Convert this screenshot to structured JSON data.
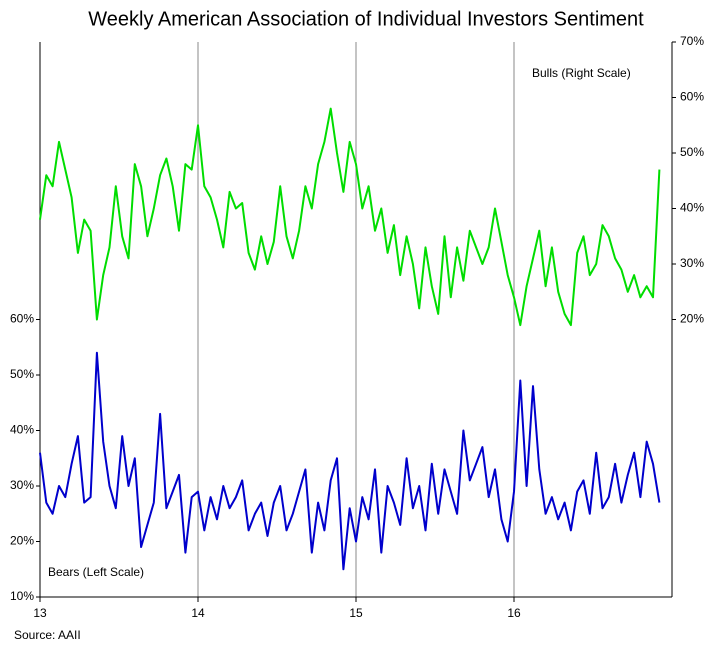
{
  "chart_data": {
    "type": "line",
    "title": "Weekly American Association of Individual  Investors Sentiment",
    "annotations": [
      "Bulls (Right Scale)",
      "Bears (Left Scale)"
    ],
    "source": "Source:  AAII",
    "x": [
      13,
      13.04,
      13.08,
      13.12,
      13.16,
      13.2,
      13.24,
      13.28,
      13.32,
      13.36,
      13.4,
      13.44,
      13.48,
      13.52,
      13.56,
      13.6,
      13.64,
      13.68,
      13.72,
      13.76,
      13.8,
      13.84,
      13.88,
      13.92,
      13.96,
      14,
      14.04,
      14.08,
      14.12,
      14.16,
      14.2,
      14.24,
      14.28,
      14.32,
      14.36,
      14.4,
      14.44,
      14.48,
      14.52,
      14.56,
      14.6,
      14.64,
      14.68,
      14.72,
      14.76,
      14.8,
      14.84,
      14.88,
      14.92,
      14.96,
      15,
      15.04,
      15.08,
      15.12,
      15.16,
      15.2,
      15.24,
      15.28,
      15.32,
      15.36,
      15.4,
      15.44,
      15.48,
      15.52,
      15.56,
      15.6,
      15.64,
      15.68,
      15.72,
      15.76,
      15.8,
      15.84,
      15.88,
      15.92,
      15.96,
      16,
      16.04,
      16.08,
      16.12,
      16.16,
      16.2,
      16.24,
      16.28,
      16.32,
      16.36,
      16.4,
      16.44,
      16.48,
      16.52,
      16.56,
      16.6,
      16.64,
      16.68,
      16.72,
      16.76,
      16.8,
      16.84,
      16.88,
      16.92
    ],
    "series": [
      {
        "name": "Bulls",
        "color": "#00dd00",
        "axis": "y2",
        "values": [
          38,
          46,
          44,
          52,
          47,
          42,
          32,
          38,
          36,
          20,
          28,
          33,
          44,
          35,
          31,
          48,
          44,
          35,
          40,
          46,
          49,
          44,
          36,
          48,
          47,
          55,
          44,
          42,
          38,
          33,
          43,
          40,
          41,
          32,
          29,
          35,
          30,
          34,
          44,
          35,
          31,
          36,
          44,
          40,
          48,
          52,
          58,
          50,
          43,
          52,
          48,
          40,
          44,
          36,
          40,
          32,
          37,
          28,
          35,
          30,
          22,
          33,
          26,
          21,
          35,
          24,
          33,
          27,
          36,
          33,
          30,
          33,
          40,
          34,
          28,
          24,
          19,
          26,
          31,
          36,
          26,
          33,
          25,
          21,
          19,
          32,
          35,
          28,
          30,
          37,
          35,
          31,
          29,
          25,
          28,
          24,
          26,
          24,
          47
        ]
      },
      {
        "name": "Bears",
        "color": "#0000cc",
        "values": [
          36,
          27,
          25,
          30,
          28,
          34,
          39,
          27,
          28,
          54,
          38,
          30,
          26,
          39,
          30,
          35,
          19,
          23,
          27,
          43,
          26,
          29,
          32,
          18,
          28,
          29,
          22,
          28,
          24,
          30,
          26,
          28,
          31,
          22,
          25,
          27,
          21,
          27,
          30,
          22,
          25,
          29,
          33,
          18,
          27,
          22,
          31,
          35,
          15,
          26,
          20,
          28,
          24,
          33,
          18,
          30,
          27,
          23,
          35,
          26,
          30,
          22,
          34,
          25,
          33,
          29,
          25,
          40,
          31,
          34,
          37,
          28,
          33,
          24,
          20,
          29,
          49,
          30,
          48,
          33,
          25,
          28,
          24,
          27,
          22,
          29,
          31,
          25,
          36,
          26,
          28,
          34,
          27,
          32,
          36,
          28,
          38,
          34,
          27
        ]
      }
    ],
    "xlim": [
      13,
      17
    ],
    "xticks": [
      13,
      14,
      15,
      16
    ],
    "ylim": [
      10,
      110
    ],
    "yticks": [
      {
        "value": 10,
        "label": "10%"
      },
      {
        "value": 20,
        "label": "20%"
      },
      {
        "value": 30,
        "label": "30%"
      },
      {
        "value": 40,
        "label": "40%"
      },
      {
        "value": 50,
        "label": "50%"
      },
      {
        "value": 60,
        "label": "60%"
      }
    ],
    "y2lim": [
      -30,
      70
    ],
    "y2ticks": [
      {
        "value": 20,
        "label": "20%"
      },
      {
        "value": 30,
        "label": "30%"
      },
      {
        "value": 40,
        "label": "40%"
      },
      {
        "value": 50,
        "label": "50%"
      },
      {
        "value": 60,
        "label": "60%"
      },
      {
        "value": 70,
        "label": "70%"
      }
    ],
    "grid": "x"
  }
}
